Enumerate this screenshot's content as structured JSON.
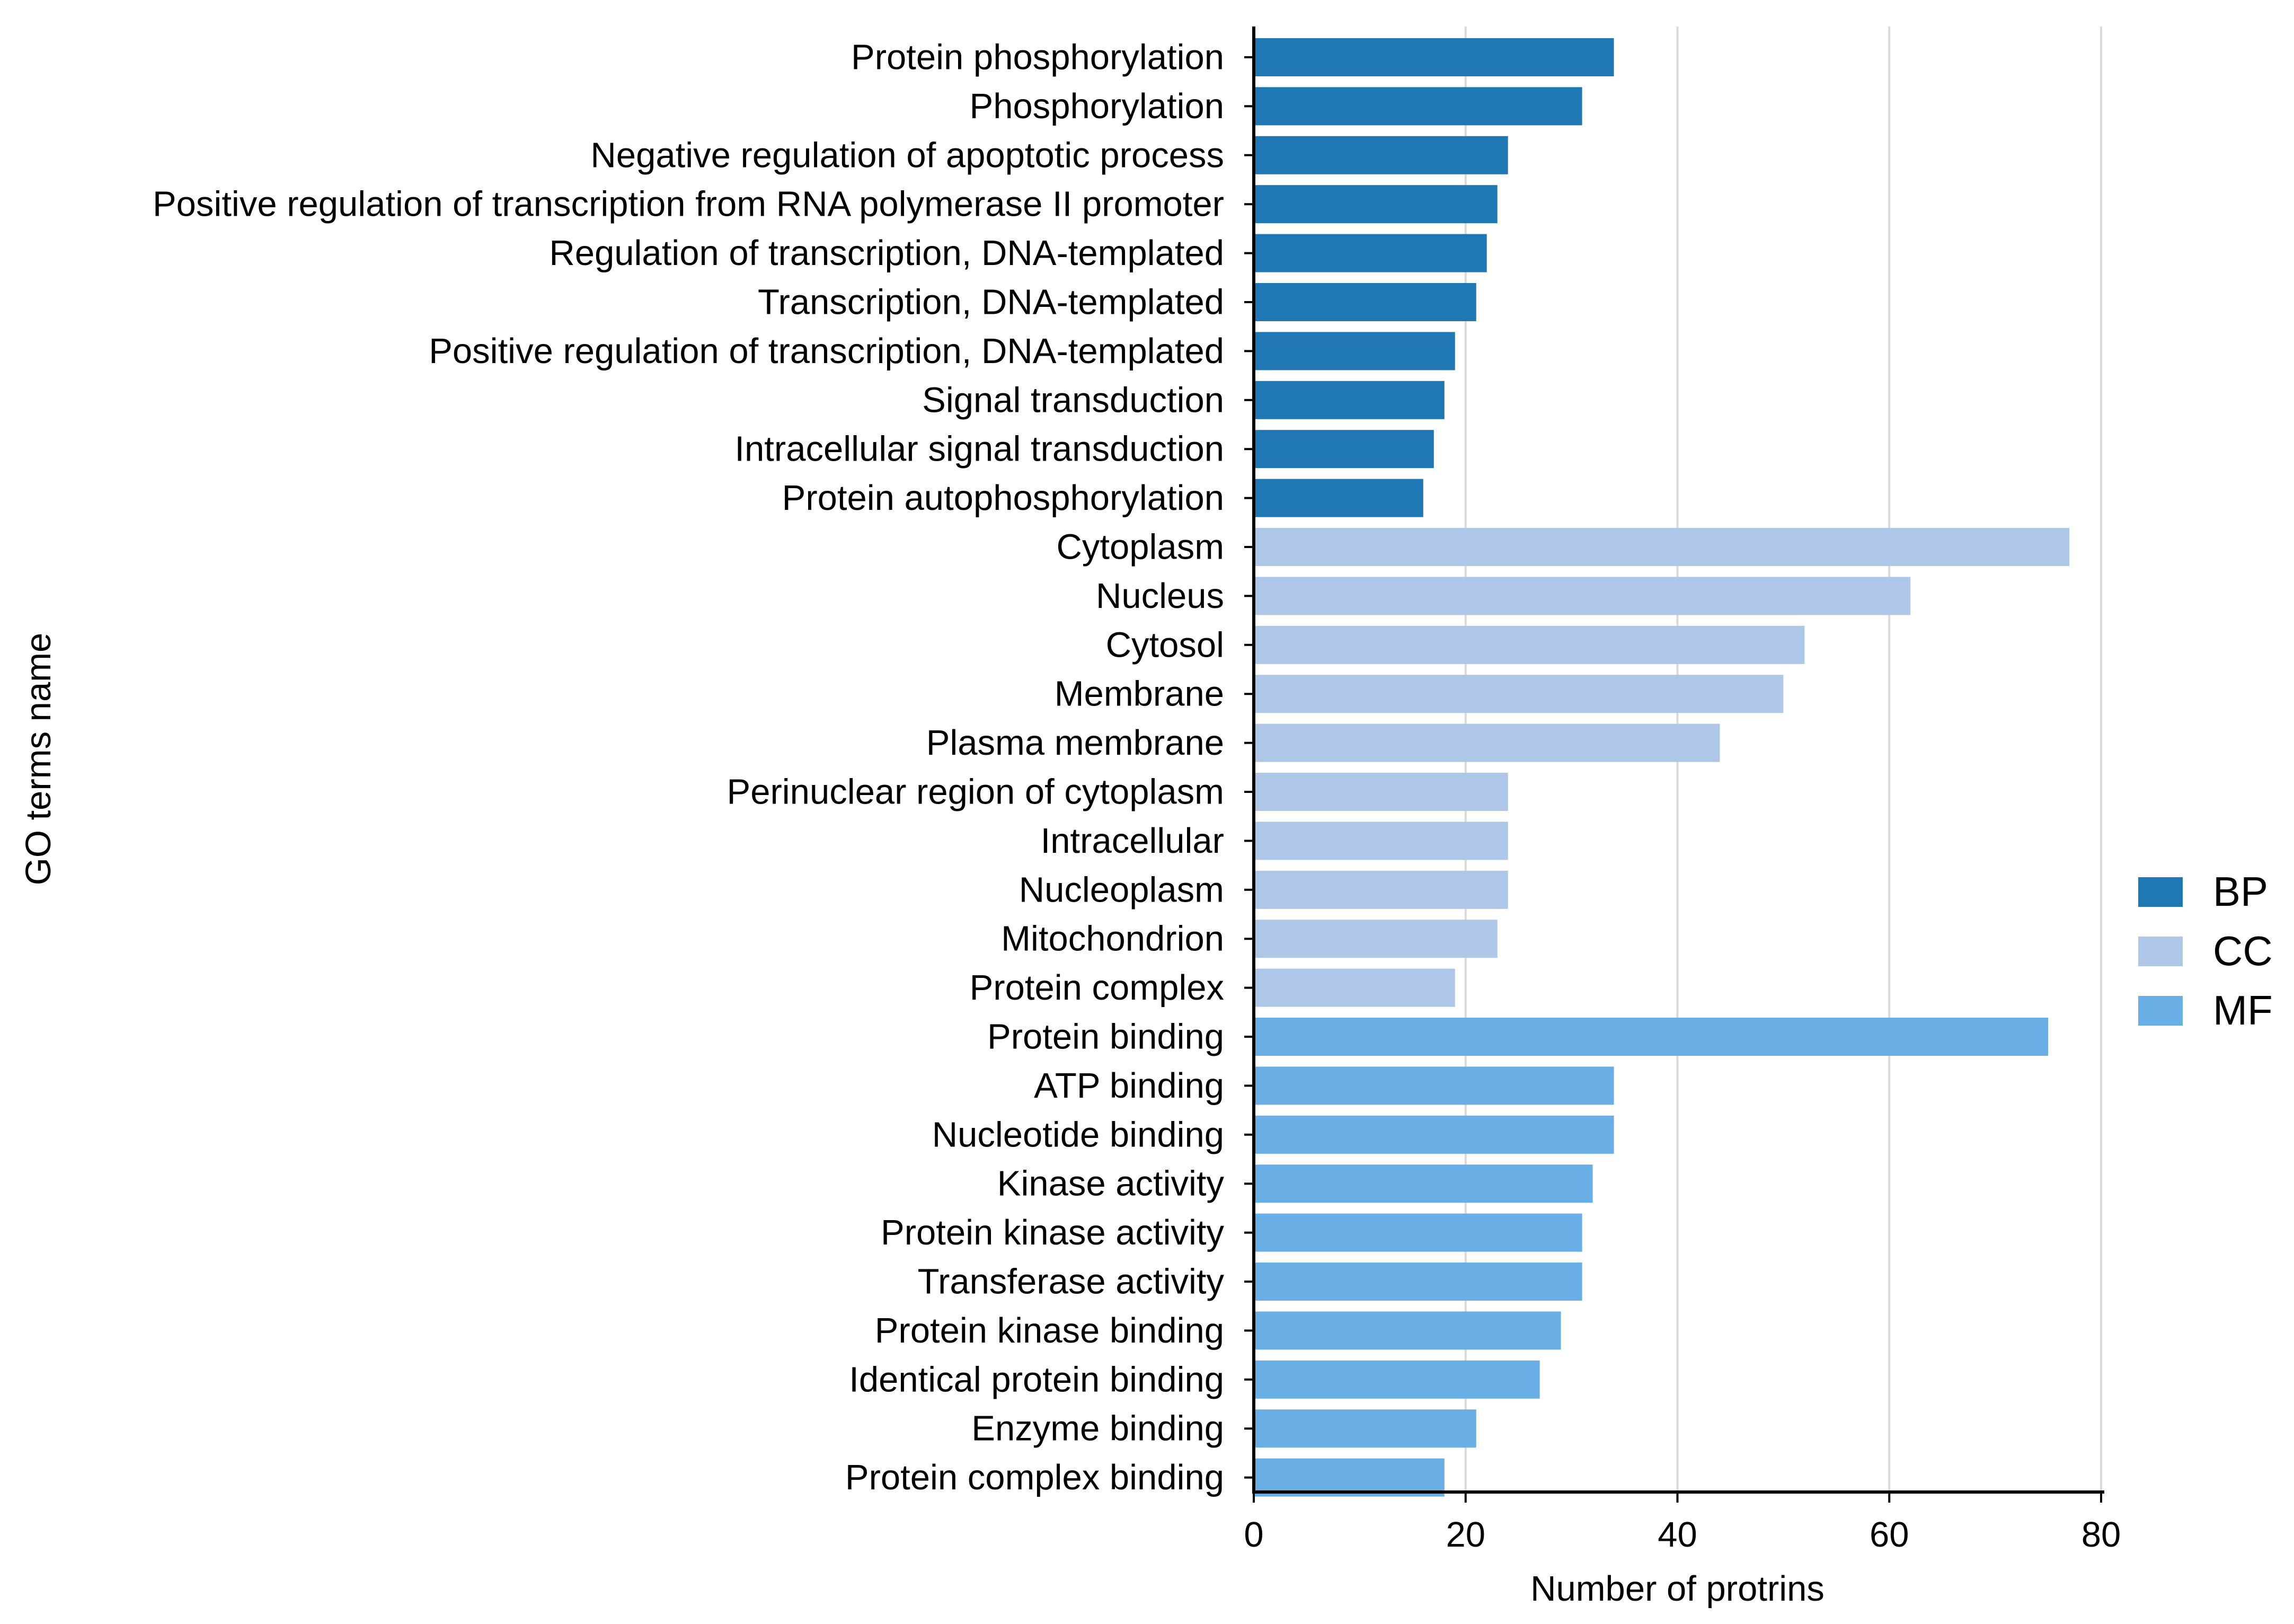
{
  "chart_data": {
    "type": "bar",
    "orientation": "horizontal",
    "title": "",
    "xlabel": "Number of protrins",
    "ylabel": "GO terms name",
    "xlim": [
      0,
      80
    ],
    "xticks": [
      0,
      20,
      40,
      60,
      80
    ],
    "grid": "vertical",
    "legend_position": "right",
    "colors": {
      "BP": "#1f77b4",
      "CC": "#aec7e8",
      "MF": "#6aaee6"
    },
    "legend": [
      {
        "name": "BP",
        "label": "BP"
      },
      {
        "name": "CC",
        "label": "CC"
      },
      {
        "name": "MF",
        "label": "MF"
      }
    ],
    "bars": [
      {
        "label": "Protein phosphorylation",
        "value": 34,
        "group": "BP"
      },
      {
        "label": "Phosphorylation",
        "value": 31,
        "group": "BP"
      },
      {
        "label": "Negative regulation of apoptotic process",
        "value": 24,
        "group": "BP"
      },
      {
        "label": "Positive regulation of transcription from RNA polymerase II promoter",
        "value": 23,
        "group": "BP"
      },
      {
        "label": "Regulation of transcription, DNA-templated",
        "value": 22,
        "group": "BP"
      },
      {
        "label": "Transcription, DNA-templated",
        "value": 21,
        "group": "BP"
      },
      {
        "label": "Positive regulation of transcription, DNA-templated",
        "value": 19,
        "group": "BP"
      },
      {
        "label": "Signal transduction",
        "value": 18,
        "group": "BP"
      },
      {
        "label": "Intracellular signal transduction",
        "value": 17,
        "group": "BP"
      },
      {
        "label": "Protein autophosphorylation",
        "value": 16,
        "group": "BP"
      },
      {
        "label": "Cytoplasm",
        "value": 77,
        "group": "CC"
      },
      {
        "label": "Nucleus",
        "value": 62,
        "group": "CC"
      },
      {
        "label": "Cytosol",
        "value": 52,
        "group": "CC"
      },
      {
        "label": "Membrane",
        "value": 50,
        "group": "CC"
      },
      {
        "label": "Plasma membrane",
        "value": 44,
        "group": "CC"
      },
      {
        "label": "Perinuclear region of cytoplasm",
        "value": 24,
        "group": "CC"
      },
      {
        "label": "Intracellular",
        "value": 24,
        "group": "CC"
      },
      {
        "label": "Nucleoplasm",
        "value": 24,
        "group": "CC"
      },
      {
        "label": "Mitochondrion",
        "value": 23,
        "group": "CC"
      },
      {
        "label": "Protein complex",
        "value": 19,
        "group": "CC"
      },
      {
        "label": "Protein binding",
        "value": 75,
        "group": "MF"
      },
      {
        "label": "ATP binding",
        "value": 34,
        "group": "MF"
      },
      {
        "label": "Nucleotide binding",
        "value": 34,
        "group": "MF"
      },
      {
        "label": "Kinase activity",
        "value": 32,
        "group": "MF"
      },
      {
        "label": "Protein kinase activity",
        "value": 31,
        "group": "MF"
      },
      {
        "label": "Transferase activity",
        "value": 31,
        "group": "MF"
      },
      {
        "label": "Protein kinase binding",
        "value": 29,
        "group": "MF"
      },
      {
        "label": "Identical protein binding",
        "value": 27,
        "group": "MF"
      },
      {
        "label": "Enzyme binding",
        "value": 21,
        "group": "MF"
      },
      {
        "label": "Protein complex binding",
        "value": 18,
        "group": "MF"
      }
    ]
  }
}
